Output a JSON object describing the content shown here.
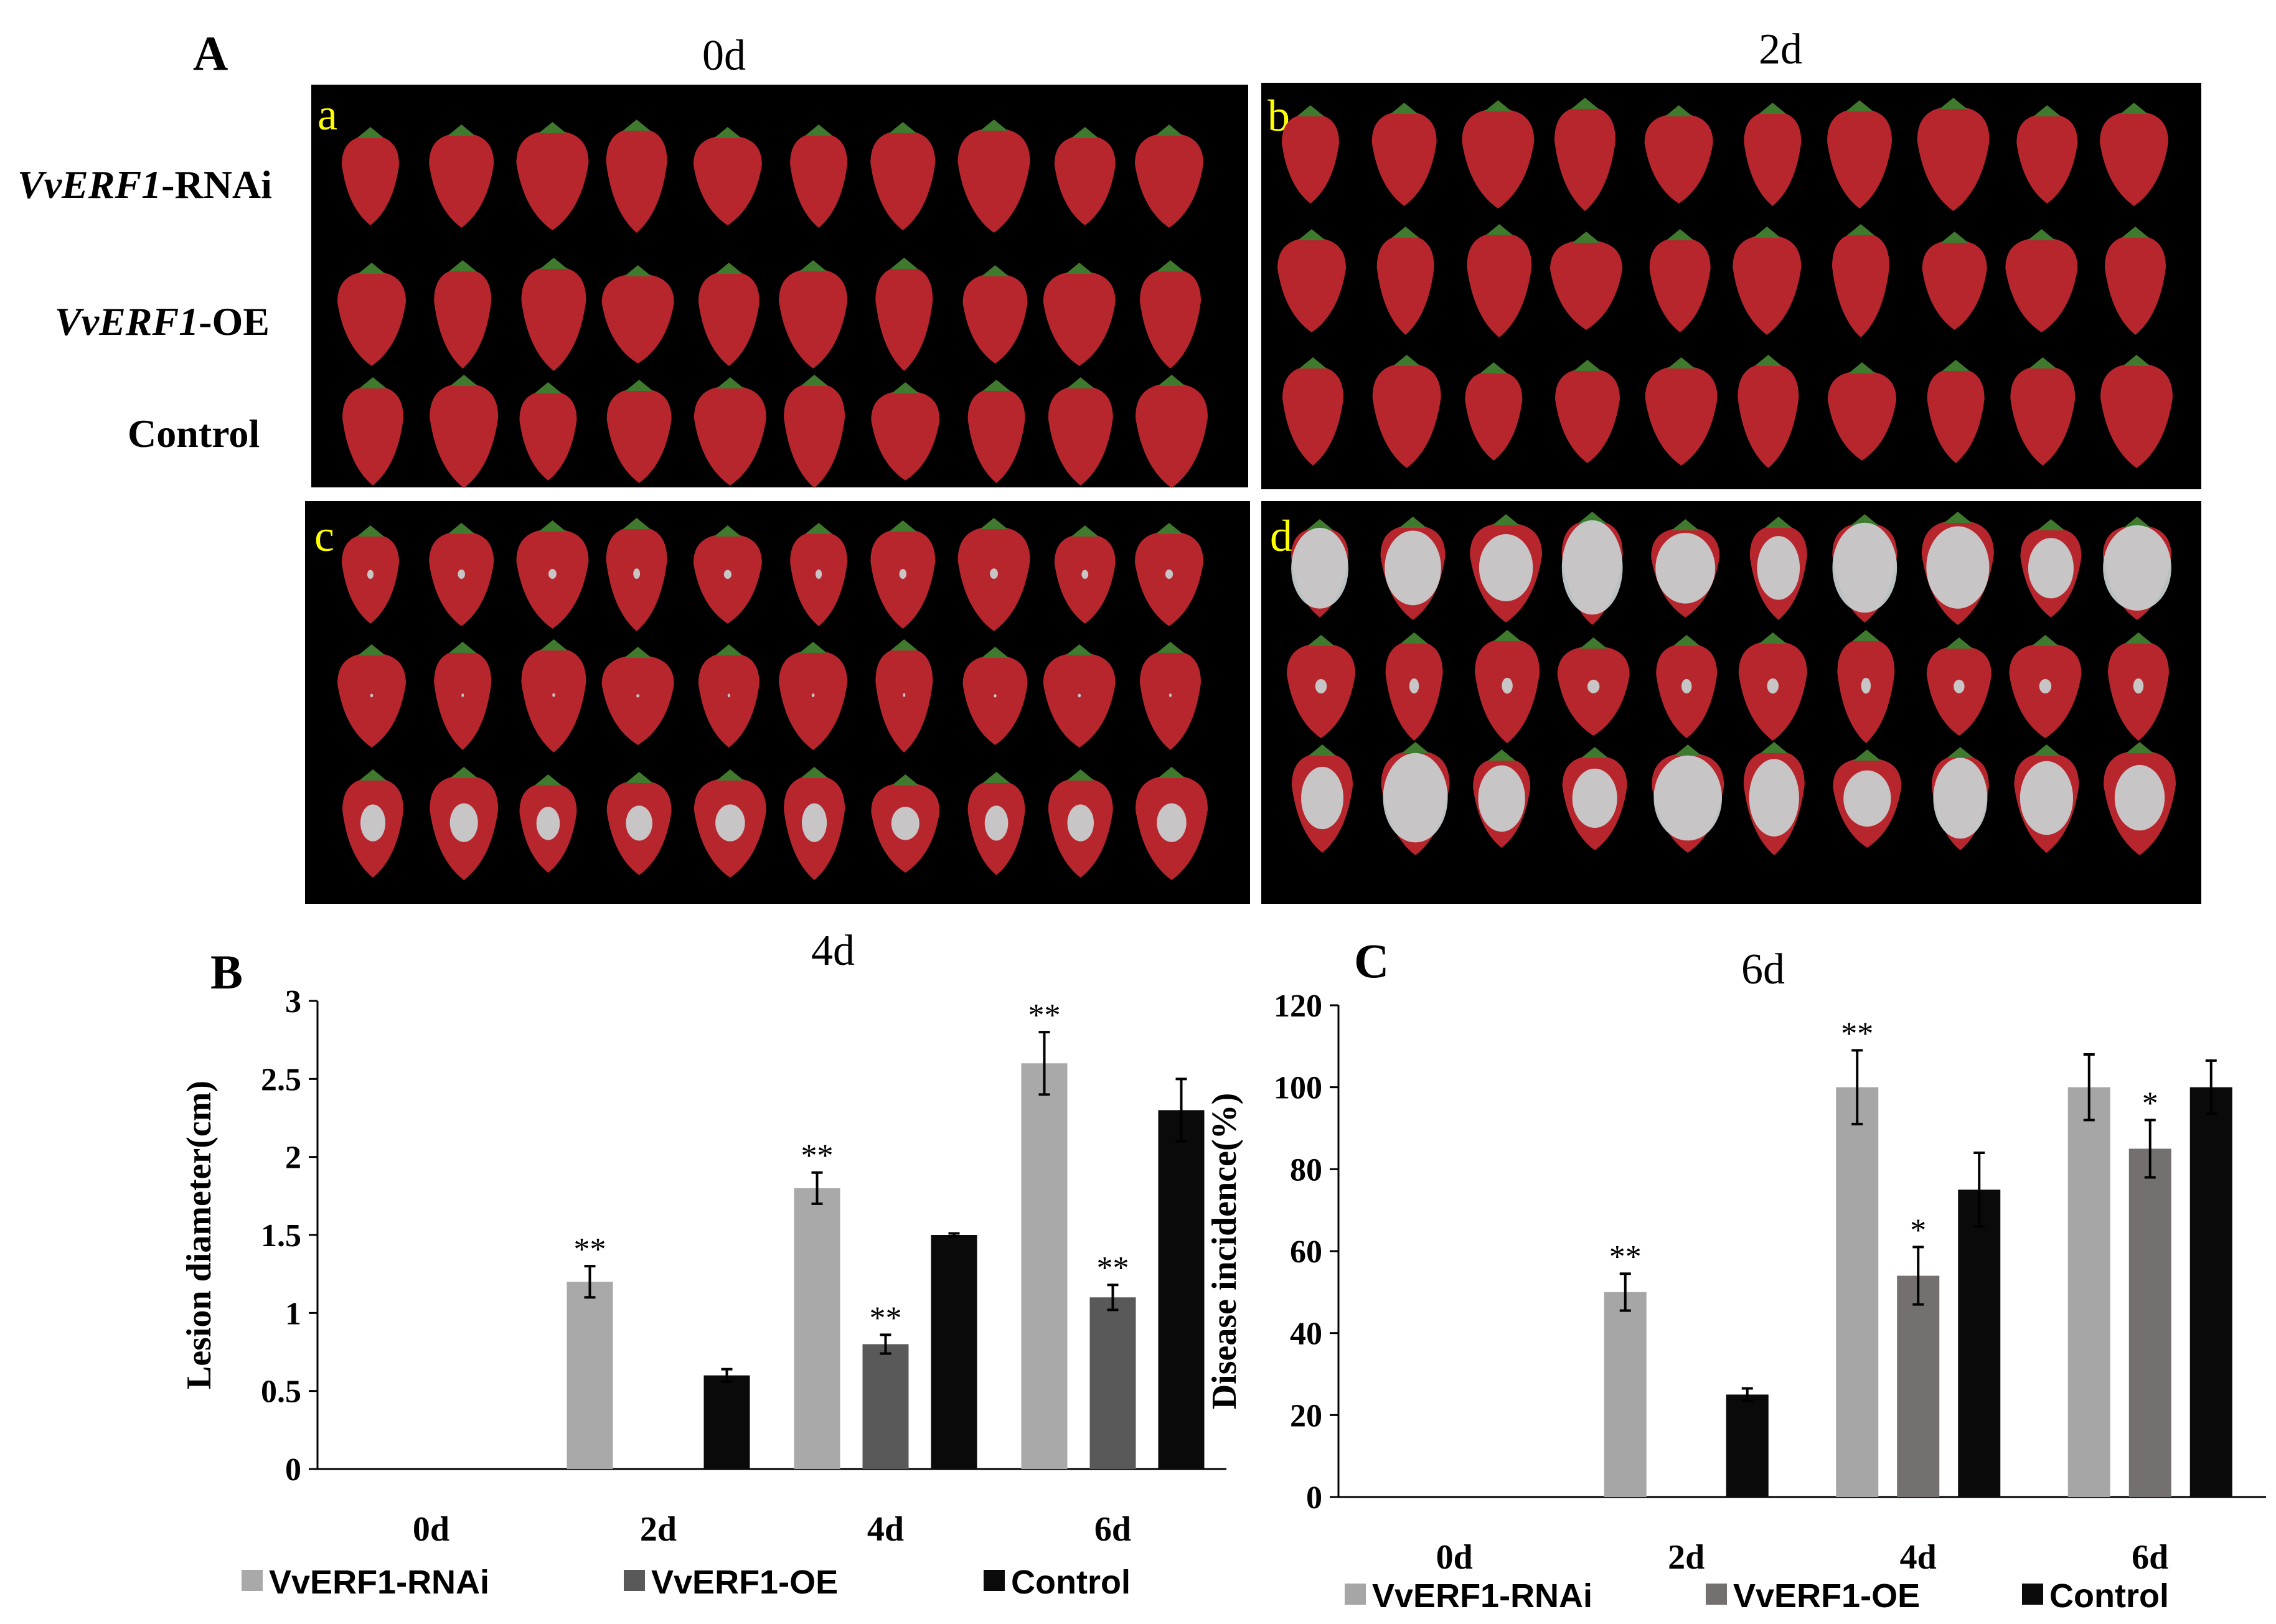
{
  "figure_label_A": "A",
  "photo_panel": {
    "sub_labels": [
      "a",
      "b",
      "c",
      "d"
    ],
    "time_titles": [
      "0d",
      "2d",
      "4d",
      "6d"
    ],
    "row_labels": [
      {
        "italic": "VvERF1",
        "plain": "-RNAi"
      },
      {
        "italic": "VvERF1",
        "plain": "-OE"
      },
      {
        "italic": "",
        "plain": "Control"
      }
    ],
    "fruit_per_row": 10,
    "mold_levels": [
      [
        0.0,
        0.0,
        0.0
      ],
      [
        0.0,
        0.0,
        0.0
      ],
      [
        0.35,
        0.05,
        0.3
      ],
      [
        0.95,
        0.2,
        0.9
      ]
    ]
  },
  "colors": {
    "rnai_B": "#a9a9a9",
    "oe_B": "#595959",
    "control": "#0a0a0a",
    "rnai_C": "#a6a6a6",
    "oe_C": "#757070",
    "fruit": "#b8262d",
    "mold": "#c9d2d4"
  },
  "chart_data": [
    {
      "panel": "B",
      "type": "bar",
      "title": "",
      "xlabel": "",
      "ylabel": "Lesion diameter(cm)",
      "ylim": [
        0,
        3
      ],
      "yticks": [
        "0",
        "0.5",
        "1",
        "1.5",
        "2",
        "2.5",
        "3"
      ],
      "categories": [
        "0d",
        "2d",
        "4d",
        "6d"
      ],
      "series": [
        {
          "name": "VvERF1-RNAi",
          "values": [
            0,
            1.2,
            1.8,
            2.6
          ],
          "errors": [
            0,
            0.1,
            0.1,
            0.2
          ],
          "sig": [
            "",
            "**",
            "**",
            "**"
          ]
        },
        {
          "name": "VvERF1-OE",
          "values": [
            0,
            0,
            0.8,
            1.1
          ],
          "errors": [
            0,
            0,
            0.06,
            0.08
          ],
          "sig": [
            "",
            "",
            "**",
            "**"
          ]
        },
        {
          "name": "Control",
          "values": [
            0,
            0.6,
            1.5,
            2.3
          ],
          "errors": [
            0,
            0.04,
            0.01,
            0.2
          ],
          "sig": [
            "",
            "",
            "",
            ""
          ]
        }
      ],
      "legend": [
        "VvERF1-RNAi",
        "VvERF1-OE",
        "Control"
      ]
    },
    {
      "panel": "C",
      "type": "bar",
      "title": "",
      "xlabel": "",
      "ylabel": "Disease incidence(%)",
      "ylim": [
        0,
        120
      ],
      "yticks": [
        "0",
        "20",
        "40",
        "60",
        "80",
        "100",
        "120"
      ],
      "categories": [
        "0d",
        "2d",
        "4d",
        "6d"
      ],
      "series": [
        {
          "name": "VvERF1-RNAi",
          "values": [
            0,
            50,
            100,
            100
          ],
          "errors": [
            0,
            4.5,
            9,
            8
          ],
          "sig": [
            "",
            "**",
            "**",
            ""
          ]
        },
        {
          "name": "VvERF1-OE",
          "values": [
            0,
            0,
            54,
            85
          ],
          "errors": [
            0,
            0,
            7,
            7
          ],
          "sig": [
            "",
            "",
            "*",
            "*"
          ]
        },
        {
          "name": "Control",
          "values": [
            0,
            25,
            75,
            100
          ],
          "errors": [
            0,
            1.5,
            9,
            6.5
          ],
          "sig": [
            "",
            "",
            "",
            ""
          ]
        }
      ],
      "legend": [
        "VvERF1-RNAi",
        "VvERF1-OE",
        "Control"
      ]
    }
  ],
  "panel_letters": {
    "B": "B",
    "C": "C"
  }
}
